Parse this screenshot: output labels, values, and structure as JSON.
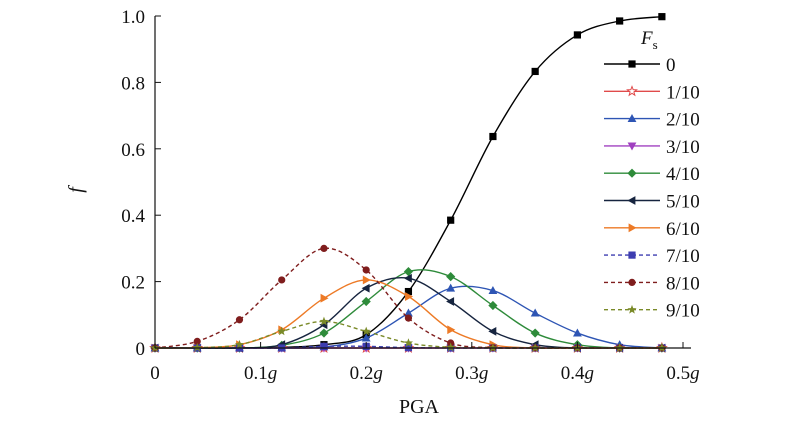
{
  "chart_data": {
    "type": "line",
    "title": "",
    "xlabel": "PGA",
    "ylabel": "f",
    "xlim": [
      0,
      0.5
    ],
    "ylim": [
      0,
      1.0
    ],
    "x_ticks": [
      {
        "value": 0,
        "label": "0",
        "suffix": ""
      },
      {
        "value": 0.1,
        "label": "0.1",
        "suffix": "g"
      },
      {
        "value": 0.2,
        "label": "0.2",
        "suffix": "g"
      },
      {
        "value": 0.3,
        "label": "0.3",
        "suffix": "g"
      },
      {
        "value": 0.4,
        "label": "0.4",
        "suffix": "g"
      },
      {
        "value": 0.5,
        "label": "0.5",
        "suffix": "g"
      }
    ],
    "y_ticks": [
      {
        "value": 0,
        "label": "0"
      },
      {
        "value": 0.2,
        "label": "0.2"
      },
      {
        "value": 0.4,
        "label": "0.4"
      },
      {
        "value": 0.6,
        "label": "0.6"
      },
      {
        "value": 0.8,
        "label": "0.8"
      },
      {
        "value": 1.0,
        "label": "1.0"
      }
    ],
    "grid": false,
    "legend": {
      "title": "F",
      "title_subscript": "s",
      "position": "right"
    },
    "series": [
      {
        "name": "0",
        "color": "#000000",
        "marker": "square",
        "dashed": false,
        "points": [
          [
            0,
            0
          ],
          [
            0.04,
            0
          ],
          [
            0.08,
            0
          ],
          [
            0.12,
            0.002
          ],
          [
            0.16,
            0.01
          ],
          [
            0.2,
            0.04
          ],
          [
            0.24,
            0.17
          ],
          [
            0.28,
            0.385
          ],
          [
            0.32,
            0.637
          ],
          [
            0.36,
            0.833
          ],
          [
            0.4,
            0.943
          ],
          [
            0.44,
            0.985
          ],
          [
            0.48,
            0.998
          ]
        ]
      },
      {
        "name": "1/10",
        "color": "#e04a4a",
        "marker": "star-open",
        "dashed": false,
        "points": [
          [
            0,
            0
          ],
          [
            0.04,
            0
          ],
          [
            0.08,
            0
          ],
          [
            0.12,
            0
          ],
          [
            0.16,
            0
          ],
          [
            0.2,
            0
          ],
          [
            0.24,
            0
          ],
          [
            0.28,
            0
          ],
          [
            0.32,
            0
          ],
          [
            0.36,
            0
          ],
          [
            0.4,
            0
          ],
          [
            0.44,
            0
          ],
          [
            0.48,
            0
          ]
        ]
      },
      {
        "name": "2/10",
        "color": "#2e55b4",
        "marker": "triangle-up",
        "dashed": false,
        "points": [
          [
            0,
            0
          ],
          [
            0.04,
            0
          ],
          [
            0.08,
            0
          ],
          [
            0.12,
            0
          ],
          [
            0.16,
            0.003
          ],
          [
            0.2,
            0.03
          ],
          [
            0.24,
            0.105
          ],
          [
            0.28,
            0.18
          ],
          [
            0.32,
            0.173
          ],
          [
            0.36,
            0.105
          ],
          [
            0.4,
            0.045
          ],
          [
            0.44,
            0.01
          ],
          [
            0.48,
            0
          ]
        ]
      },
      {
        "name": "3/10",
        "color": "#a040c0",
        "marker": "triangle-down",
        "dashed": false,
        "points": [
          [
            0,
            0
          ],
          [
            0.04,
            0
          ],
          [
            0.08,
            0
          ],
          [
            0.12,
            0
          ],
          [
            0.16,
            0
          ],
          [
            0.2,
            0
          ],
          [
            0.24,
            0
          ],
          [
            0.28,
            0
          ],
          [
            0.32,
            0
          ],
          [
            0.36,
            0
          ],
          [
            0.4,
            0
          ],
          [
            0.44,
            0
          ],
          [
            0.48,
            0
          ]
        ]
      },
      {
        "name": "4/10",
        "color": "#2e8b3a",
        "marker": "diamond",
        "dashed": false,
        "points": [
          [
            0,
            0
          ],
          [
            0.04,
            0
          ],
          [
            0.08,
            0
          ],
          [
            0.12,
            0.008
          ],
          [
            0.16,
            0.045
          ],
          [
            0.2,
            0.14
          ],
          [
            0.24,
            0.23
          ],
          [
            0.28,
            0.215
          ],
          [
            0.32,
            0.128
          ],
          [
            0.36,
            0.045
          ],
          [
            0.4,
            0.01
          ],
          [
            0.44,
            0
          ],
          [
            0.48,
            0
          ]
        ]
      },
      {
        "name": "5/10",
        "color": "#16243f",
        "marker": "triangle-left",
        "dashed": false,
        "points": [
          [
            0,
            0
          ],
          [
            0.04,
            0
          ],
          [
            0.08,
            0
          ],
          [
            0.12,
            0.01
          ],
          [
            0.16,
            0.07
          ],
          [
            0.2,
            0.18
          ],
          [
            0.24,
            0.21
          ],
          [
            0.28,
            0.14
          ],
          [
            0.32,
            0.05
          ],
          [
            0.36,
            0.01
          ],
          [
            0.4,
            0
          ],
          [
            0.44,
            0
          ],
          [
            0.48,
            0
          ]
        ]
      },
      {
        "name": "6/10",
        "color": "#ed7a26",
        "marker": "triangle-right",
        "dashed": false,
        "points": [
          [
            0,
            0
          ],
          [
            0.04,
            0.001
          ],
          [
            0.08,
            0.01
          ],
          [
            0.12,
            0.055
          ],
          [
            0.16,
            0.15
          ],
          [
            0.2,
            0.205
          ],
          [
            0.24,
            0.155
          ],
          [
            0.28,
            0.055
          ],
          [
            0.32,
            0.01
          ],
          [
            0.36,
            0
          ],
          [
            0.4,
            0
          ],
          [
            0.44,
            0
          ],
          [
            0.48,
            0
          ]
        ]
      },
      {
        "name": "7/10",
        "color": "#3d3db0",
        "marker": "square",
        "dashed": true,
        "points": [
          [
            0,
            0
          ],
          [
            0.04,
            0
          ],
          [
            0.08,
            0
          ],
          [
            0.12,
            0
          ],
          [
            0.16,
            0.005
          ],
          [
            0.2,
            0.005
          ],
          [
            0.24,
            0.001
          ],
          [
            0.28,
            0
          ],
          [
            0.32,
            0
          ],
          [
            0.36,
            0
          ],
          [
            0.4,
            0
          ],
          [
            0.44,
            0
          ],
          [
            0.48,
            0
          ]
        ]
      },
      {
        "name": "8/10",
        "color": "#7f1d1d",
        "marker": "circle",
        "dashed": true,
        "points": [
          [
            0,
            0
          ],
          [
            0.04,
            0.02
          ],
          [
            0.08,
            0.085
          ],
          [
            0.12,
            0.205
          ],
          [
            0.16,
            0.3
          ],
          [
            0.2,
            0.235
          ],
          [
            0.24,
            0.09
          ],
          [
            0.28,
            0.015
          ],
          [
            0.32,
            0.001
          ],
          [
            0.36,
            0
          ],
          [
            0.4,
            0
          ],
          [
            0.44,
            0
          ],
          [
            0.48,
            0
          ]
        ]
      },
      {
        "name": "9/10",
        "color": "#7a8a28",
        "marker": "star",
        "dashed": true,
        "points": [
          [
            0,
            0
          ],
          [
            0.04,
            0.001
          ],
          [
            0.08,
            0.01
          ],
          [
            0.12,
            0.05
          ],
          [
            0.16,
            0.08
          ],
          [
            0.2,
            0.05
          ],
          [
            0.24,
            0.015
          ],
          [
            0.28,
            0.002
          ],
          [
            0.32,
            0
          ],
          [
            0.36,
            0
          ],
          [
            0.4,
            0
          ],
          [
            0.44,
            0
          ],
          [
            0.48,
            0
          ]
        ]
      }
    ]
  }
}
